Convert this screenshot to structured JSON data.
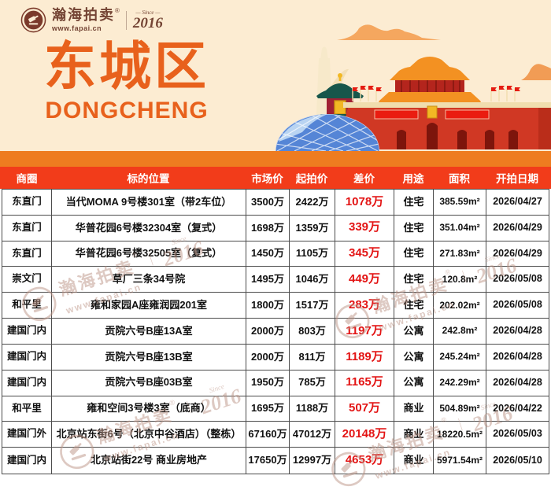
{
  "brand": {
    "name": "瀚海拍卖",
    "reg": "®",
    "url": "www.fapai.cn",
    "since_label": "— Since —",
    "year": "2016"
  },
  "banner": {
    "title": "东城区",
    "subtitle": "DONGCHENG"
  },
  "table": {
    "columns": [
      {
        "key": "district",
        "label": "商圈"
      },
      {
        "key": "location",
        "label": "标的位置"
      },
      {
        "key": "market-price",
        "label": "市场价"
      },
      {
        "key": "starting-price",
        "label": "起拍价"
      },
      {
        "key": "price-gap",
        "label": "差价"
      },
      {
        "key": "use",
        "label": "用途"
      },
      {
        "key": "area",
        "label": "面积"
      },
      {
        "key": "auction-date",
        "label": "开拍日期"
      }
    ],
    "rows": [
      [
        "东直门",
        "当代MOMA 9号楼301室（带2车位）",
        "3500万",
        "2422万",
        "1078万",
        "住宅",
        "385.59m²",
        "2026/04/27"
      ],
      [
        "东直门",
        "华普花园6号楼32304室（复式）",
        "1698万",
        "1359万",
        "339万",
        "住宅",
        "351.04m²",
        "2026/04/29"
      ],
      [
        "东直门",
        "华普花园6号楼32505室（复式）",
        "1450万",
        "1105万",
        "345万",
        "住宅",
        "271.83m²",
        "2026/04/29"
      ],
      [
        "崇文门",
        "草厂三条34号院",
        "1495万",
        "1046万",
        "449万",
        "住宅",
        "120.8m²",
        "2026/05/08"
      ],
      [
        "和平里",
        "雍和家园A座雍润园201室",
        "1800万",
        "1517万",
        "283万",
        "住宅",
        "202.02m²",
        "2026/05/08"
      ],
      [
        "建国门内",
        "贡院六号B座13A室",
        "2000万",
        "803万",
        "1197万",
        "公寓",
        "242.8m²",
        "2026/04/28"
      ],
      [
        "建国门内",
        "贡院六号B座13B室",
        "2000万",
        "811万",
        "1189万",
        "公寓",
        "245.24m²",
        "2026/04/28"
      ],
      [
        "建国门内",
        "贡院六号B座03B室",
        "1950万",
        "785万",
        "1165万",
        "公寓",
        "242.29m²",
        "2026/04/28"
      ],
      [
        "和平里",
        "雍和空间3号楼3室（底商）",
        "1695万",
        "1188万",
        "507万",
        "商业",
        "504.89m²",
        "2026/04/22"
      ],
      [
        "建国门外",
        "北京站东街6号（北京中谷酒店）（整栋）",
        "67160万",
        "47012万",
        "20148万",
        "商业",
        "18220.5m²",
        "2026/05/03"
      ],
      [
        "建国门内",
        "北京站街22号 商业房地产",
        "17650万",
        "12997万",
        "4653万",
        "商业",
        "5971.54m²",
        "2026/05/10"
      ]
    ]
  },
  "watermark": {
    "name": "瀚海拍卖",
    "reg": "®",
    "divider": "｜",
    "since": "Since",
    "year": "2016",
    "url": "www.fapai.cn"
  },
  "colors": {
    "banner_bg": "#fcecd2",
    "accent_orange": "#e8611c",
    "band_orange": "#ee7c20",
    "header_red": "#f23c1a",
    "diff_red": "#e31414",
    "border": "#4c4c4c"
  }
}
